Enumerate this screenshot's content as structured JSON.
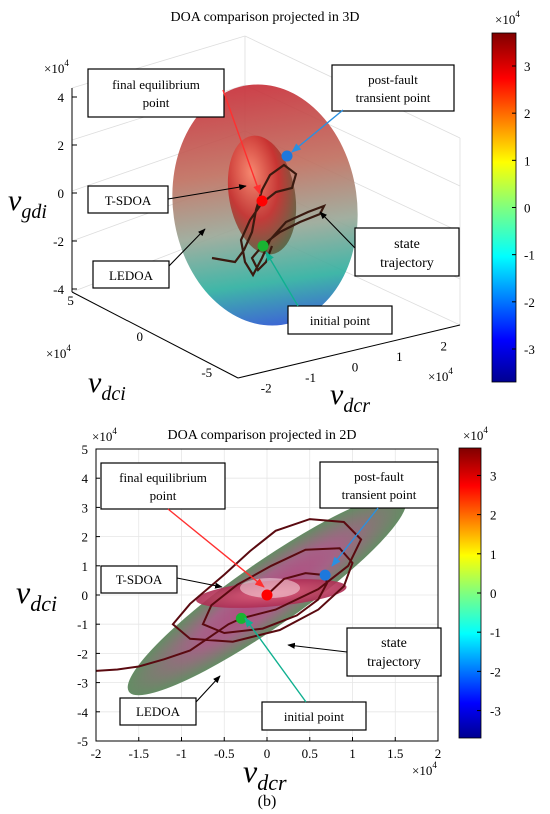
{
  "chart_data": [
    {
      "type": "3d-surface",
      "title": "DOA comparison projected in 3D",
      "axes": {
        "x": {
          "label": "v",
          "label_sub": "dcr",
          "range": [
            -2.5,
            2.5
          ],
          "multiplier": "×10",
          "multiplier_exp": "4",
          "ticks": [
            "-2",
            "-1",
            "0",
            "1",
            "2"
          ],
          "tick_values": [
            -2,
            -1,
            0,
            1,
            2
          ]
        },
        "y": {
          "label": "v",
          "label_sub": "dci",
          "range": [
            -6,
            6
          ],
          "multiplier": "×10",
          "multiplier_exp": "4",
          "ticks": [
            "5",
            "0",
            "-5"
          ],
          "tick_values": [
            5,
            0,
            -5
          ]
        },
        "z": {
          "label": "v",
          "label_sub": "gdi",
          "range": [
            -4,
            4
          ],
          "multiplier": "×10",
          "multiplier_exp": "4",
          "ticks": [
            "4",
            "2",
            "0",
            "-2",
            "-4"
          ],
          "tick_values": [
            4,
            2,
            0,
            -2,
            -4
          ]
        }
      },
      "colorbar": {
        "multiplier": "×10",
        "multiplier_exp": "4",
        "range": [
          -3.7,
          3.7
        ],
        "ticks": [
          "3",
          "2",
          "1",
          "0",
          "-1",
          "-2",
          "-3"
        ],
        "tick_values": [
          3,
          2,
          1,
          0,
          -1,
          -2,
          -3
        ]
      },
      "points": [
        {
          "name": "final equilibrium point",
          "x": 0,
          "y": 0,
          "z": 0,
          "color": "#ff0000"
        },
        {
          "name": "post-fault transient point",
          "x": 0.7,
          "y": 0.6,
          "z": 1.6,
          "color": "#1e78dc"
        },
        {
          "name": "initial point",
          "x": -0.3,
          "y": -0.8,
          "z": -2.0,
          "color": "#19b432"
        }
      ],
      "annotations": [
        {
          "key": "final",
          "text": [
            "final equilibrium",
            "point"
          ]
        },
        {
          "key": "post",
          "text": [
            "post-fault",
            "transient point"
          ]
        },
        {
          "key": "tsdoa",
          "text": [
            "T-SDOA"
          ]
        },
        {
          "key": "state",
          "text": [
            "state",
            "trajectory"
          ]
        },
        {
          "key": "ledoa",
          "text": [
            "LEDOA"
          ]
        },
        {
          "key": "init",
          "text": [
            "initial point"
          ]
        }
      ],
      "regions": [
        "T-SDOA",
        "LEDOA"
      ],
      "grid": true
    },
    {
      "type": "2d-projection",
      "title": "DOA comparison projected in 2D",
      "caption": "(b)",
      "axes": {
        "x": {
          "label": "v",
          "label_sub": "dcr",
          "range": [
            -2,
            2
          ],
          "multiplier": "×10",
          "multiplier_exp": "4",
          "ticks": [
            "-2",
            "-1.5",
            "-1",
            "-0.5",
            "0",
            "0.5",
            "1",
            "1.5",
            "2"
          ],
          "tick_values": [
            -2,
            -1.5,
            -1,
            -0.5,
            0,
            0.5,
            1,
            1.5,
            2
          ]
        },
        "y": {
          "label": "v",
          "label_sub": "dci",
          "range": [
            -5,
            5
          ],
          "multiplier": "×10",
          "multiplier_exp": "4",
          "ticks": [
            "5",
            "4",
            "3",
            "2",
            "1",
            "0",
            "-1",
            "-2",
            "-3",
            "-4",
            "-5"
          ],
          "tick_values": [
            5,
            4,
            3,
            2,
            1,
            0,
            -1,
            -2,
            -3,
            -4,
            -5
          ]
        }
      },
      "colorbar": {
        "multiplier": "×10",
        "multiplier_exp": "4",
        "range": [
          -3.7,
          3.7
        ],
        "ticks": [
          "3",
          "2",
          "1",
          "0",
          "-1",
          "-2",
          "-3"
        ],
        "tick_values": [
          3,
          2,
          1,
          0,
          -1,
          -2,
          -3
        ]
      },
      "regions": {
        "LEDOA": {
          "center": [
            0,
            0
          ],
          "semi_major": 2.12,
          "semi_minor": 0.5,
          "angle_deg": 35,
          "color": "#5c9c5c"
        },
        "T-SDOA": {
          "center": [
            0.05,
            0.05
          ],
          "semi_major": 0.95,
          "semi_minor": 0.2,
          "angle_deg": 5,
          "color": "#c8285a"
        }
      },
      "points": [
        {
          "name": "final equilibrium point",
          "x": 0,
          "y": 0,
          "color": "#ff0000"
        },
        {
          "name": "post-fault transient point",
          "x": 0.68,
          "y": 0.68,
          "color": "#1e78dc"
        },
        {
          "name": "initial point",
          "x": -0.3,
          "y": -0.8,
          "color": "#19b432"
        }
      ],
      "trajectory": [
        [
          -2.0,
          -2.6
        ],
        [
          -1.75,
          -2.55
        ],
        [
          -1.5,
          -2.45
        ],
        [
          -1.2,
          -2.2
        ],
        [
          -0.9,
          -1.9
        ],
        [
          -0.65,
          -1.4
        ],
        [
          -0.45,
          -1.0
        ],
        [
          -0.3,
          -0.8
        ],
        [
          0.1,
          -0.5
        ],
        [
          0.6,
          0.2
        ],
        [
          0.95,
          1.0
        ],
        [
          1.1,
          1.9
        ],
        [
          0.9,
          2.5
        ],
        [
          0.5,
          2.6
        ],
        [
          0.1,
          2.2
        ],
        [
          -0.2,
          1.5
        ],
        [
          -0.5,
          0.7
        ],
        [
          -0.9,
          -0.3
        ],
        [
          -1.1,
          -1.0
        ],
        [
          -0.9,
          -1.5
        ],
        [
          -0.4,
          -1.6
        ],
        [
          0.15,
          -1.2
        ],
        [
          0.6,
          -0.5
        ],
        [
          0.9,
          0.3
        ],
        [
          1.0,
          1.1
        ],
        [
          0.85,
          1.6
        ],
        [
          0.45,
          1.55
        ],
        [
          0.05,
          1.0
        ],
        [
          -0.35,
          0.35
        ],
        [
          -0.65,
          -0.35
        ],
        [
          -0.75,
          -1.0
        ],
        [
          -0.5,
          -1.3
        ],
        [
          -0.05,
          -1.15
        ],
        [
          0.35,
          -0.7
        ],
        [
          0.6,
          -0.15
        ],
        [
          0.7,
          0.4
        ],
        [
          0.68,
          0.68
        ],
        [
          0.45,
          0.75
        ],
        [
          0.2,
          0.55
        ],
        [
          0,
          0
        ]
      ],
      "annotations": [
        {
          "key": "final",
          "text": [
            "final equilibrium",
            "point"
          ]
        },
        {
          "key": "post",
          "text": [
            "post-fault",
            "transient point"
          ]
        },
        {
          "key": "tsdoa",
          "text": [
            "T-SDOA"
          ]
        },
        {
          "key": "state",
          "text": [
            "state",
            "trajectory"
          ]
        },
        {
          "key": "ledoa",
          "text": [
            "LEDOA"
          ]
        },
        {
          "key": "init",
          "text": [
            "initial point"
          ]
        }
      ],
      "grid": true
    }
  ]
}
